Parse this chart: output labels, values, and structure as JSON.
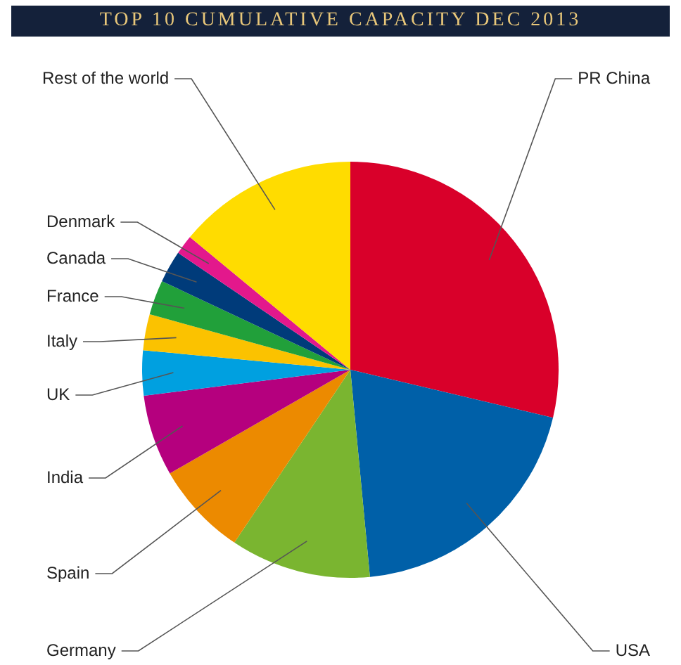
{
  "chart_data": {
    "type": "pie",
    "title": "TOP 10 CUMULATIVE CAPACITY DEC 2013",
    "categories": [
      "PR China",
      "USA",
      "Germany",
      "Spain",
      "India",
      "UK",
      "Italy",
      "France",
      "Canada",
      "Denmark",
      "Rest of the world"
    ],
    "values": [
      28.7,
      19.8,
      10.9,
      7.3,
      6.3,
      3.5,
      2.8,
      2.7,
      2.5,
      1.5,
      14.0
    ],
    "colors": [
      "#d9002a",
      "#0060a8",
      "#7ab530",
      "#ec8a00",
      "#b5007e",
      "#00a0e0",
      "#fbc200",
      "#21a03a",
      "#003b7a",
      "#e3188c",
      "#ffdc00"
    ]
  }
}
